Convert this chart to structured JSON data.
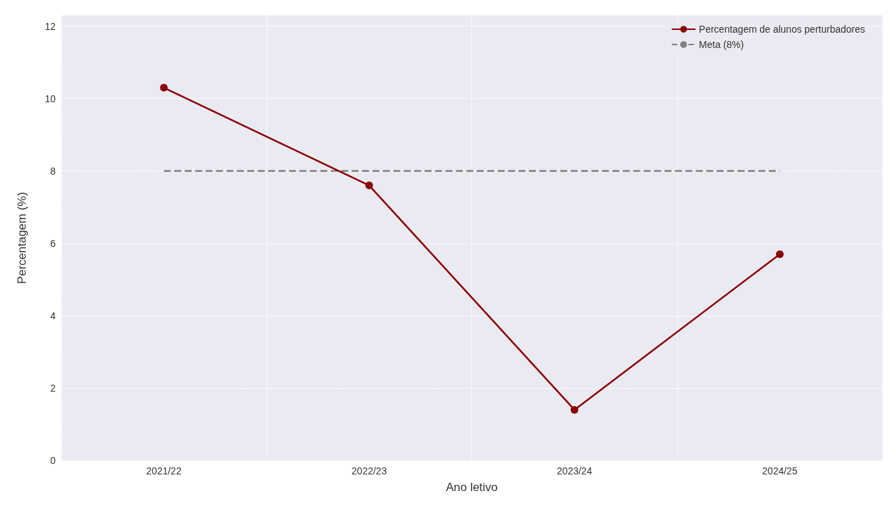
{
  "chart_data": {
    "type": "line",
    "xlabel": "Ano letivo",
    "ylabel": "Percentagem (%)",
    "categories": [
      "2021/22",
      "2022/23",
      "2023/24",
      "2024/25"
    ],
    "series": [
      {
        "name": "Percentagem de alunos perturbadores",
        "color": "#8b0000",
        "values": [
          10.3,
          7.6,
          1.4,
          5.7
        ]
      }
    ],
    "ref_lines": [
      {
        "axis": "y",
        "value": 8,
        "label": "Meta (8%)",
        "color": "#808080",
        "line_style": "dashed"
      }
    ],
    "ylim": [
      0,
      12.3
    ],
    "yticks": [
      0,
      2,
      4,
      6,
      8,
      10,
      12
    ],
    "grid": true,
    "legend": "top right",
    "marker": "circle",
    "line_style": "solid"
  }
}
